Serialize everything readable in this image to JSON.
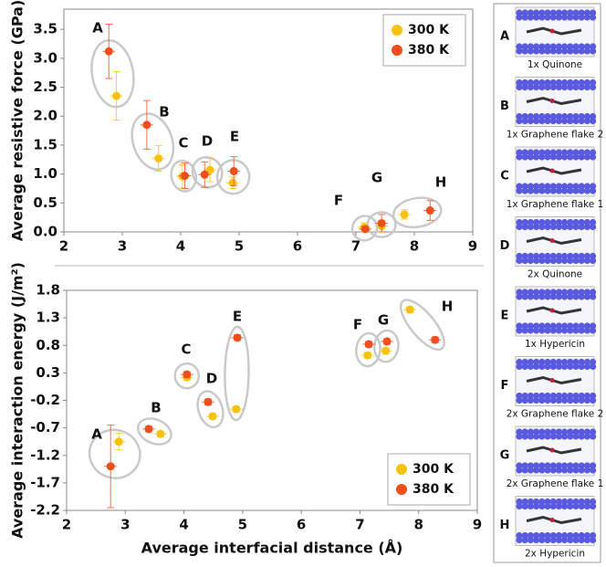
{
  "chart_data": [
    {
      "type": "scatter",
      "ylabel": "Average resistive force (GPa)",
      "xlim": [
        2,
        9
      ],
      "xticks": [
        2,
        3,
        4,
        5,
        6,
        7,
        8,
        9
      ],
      "ylim": [
        0,
        3.85
      ],
      "yticks": [
        {
          "value": 0,
          "label": "0.0"
        },
        0.5,
        {
          "value": 1,
          "label": "1.0"
        },
        1.5,
        {
          "value": 2,
          "label": "2.0"
        },
        2.5,
        {
          "value": 3,
          "label": "3.0"
        },
        3.5
      ],
      "legend": "upper right",
      "annotations": [
        "A",
        "B",
        "C",
        "D",
        "E",
        "F",
        "G",
        "H"
      ],
      "series": [
        {
          "name": "300 K",
          "color": "#f7c20c",
          "x": [
            2.9,
            3.62,
            4.03,
            4.5,
            4.89,
            7.14,
            7.44,
            7.83
          ],
          "values": [
            2.35,
            1.27,
            0.96,
            1.07,
            0.85,
            0.08,
            0.1,
            0.3
          ],
          "yerr": [
            0.42,
            0.22,
            0.2,
            0.2,
            0.1,
            0.08,
            0.1,
            0.08
          ]
        },
        {
          "name": "380 K",
          "color": "#f04e1c",
          "x": [
            2.77,
            3.42,
            4.07,
            4.41,
            4.91,
            7.16,
            7.44,
            8.27
          ],
          "values": [
            3.12,
            1.85,
            0.97,
            0.99,
            1.05,
            0.05,
            0.15,
            0.37
          ],
          "yerr": [
            0.47,
            0.42,
            0.22,
            0.22,
            0.25,
            0.04,
            0.15,
            0.17
          ]
        }
      ]
    },
    {
      "type": "scatter",
      "ylabel": "Average interaction energy (J/m²)",
      "xlabel": "Average interfacial distance (Å)",
      "xlim": [
        2,
        9
      ],
      "xticks": [
        2,
        3,
        4,
        5,
        6,
        7,
        8,
        9
      ],
      "ylim": [
        -2.2,
        1.8
      ],
      "yticks": [
        1.8,
        1.3,
        0.8,
        0.3,
        -0.2,
        -0.7,
        -1.2,
        -1.7,
        -2.2
      ],
      "legend": "lower right",
      "annotations": [
        "A",
        "B",
        "C",
        "D",
        "E",
        "F",
        "G",
        "H"
      ],
      "series": [
        {
          "name": "300 K",
          "color": "#f7c20c",
          "x": [
            2.89,
            3.6,
            4.05,
            4.49,
            4.89,
            7.13,
            7.44,
            7.85
          ],
          "values": [
            -0.95,
            -0.81,
            0.22,
            -0.49,
            -0.36,
            0.62,
            0.7,
            1.45
          ],
          "yerr": [
            0.15,
            0.05,
            0.05,
            0.05,
            0.05,
            0.05,
            0.05,
            0.05
          ]
        },
        {
          "name": "380 K",
          "color": "#f04e1c",
          "x": [
            2.75,
            3.4,
            4.05,
            4.41,
            4.91,
            7.15,
            7.46,
            8.28
          ],
          "values": [
            -1.4,
            -0.72,
            0.27,
            -0.23,
            0.94,
            0.82,
            0.87,
            0.9
          ],
          "yerr": [
            0.75,
            0.05,
            0.05,
            0.05,
            0.05,
            0.05,
            0.05,
            0.05
          ]
        }
      ]
    }
  ],
  "panel": {
    "items": [
      {
        "letter": "A",
        "caption": "1x Quinone"
      },
      {
        "letter": "B",
        "caption": "1x Graphene flake 2"
      },
      {
        "letter": "C",
        "caption": "1x Graphene flake 1"
      },
      {
        "letter": "D",
        "caption": "2x Quinone"
      },
      {
        "letter": "E",
        "caption": "1x Hypericin"
      },
      {
        "letter": "F",
        "caption": "2x Graphene flake 2"
      },
      {
        "letter": "G",
        "caption": "2x Graphene flake 1"
      },
      {
        "letter": "H",
        "caption": "2x Hypericin"
      }
    ]
  }
}
